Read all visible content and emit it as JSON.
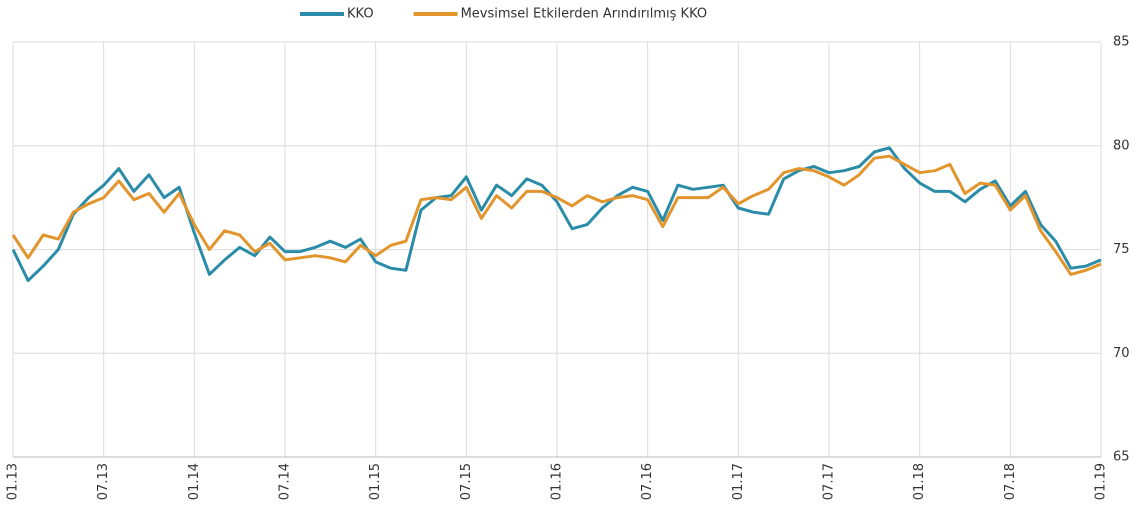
{
  "chart_data": {
    "type": "line",
    "categories": [
      "01.13",
      null,
      null,
      null,
      null,
      null,
      "07.13",
      null,
      null,
      null,
      null,
      null,
      "01.14",
      null,
      null,
      null,
      null,
      null,
      "07.14",
      null,
      null,
      null,
      null,
      null,
      "01.15",
      null,
      null,
      null,
      null,
      null,
      "07.15",
      null,
      null,
      null,
      null,
      null,
      "01.16",
      null,
      null,
      null,
      null,
      null,
      "07.16",
      null,
      null,
      null,
      null,
      null,
      "01.17",
      null,
      null,
      null,
      null,
      null,
      "07.17",
      null,
      null,
      null,
      null,
      null,
      "01.18",
      null,
      null,
      null,
      null,
      null,
      "07.18",
      null,
      null,
      null,
      null,
      null,
      "01.19"
    ],
    "series": [
      {
        "name": "KKO",
        "color": "#2a8ca8",
        "values": [
          75.0,
          73.5,
          74.2,
          75.0,
          76.7,
          77.5,
          78.1,
          78.9,
          77.8,
          78.6,
          77.5,
          78.0,
          75.8,
          73.8,
          74.5,
          75.1,
          74.7,
          75.6,
          74.9,
          74.9,
          75.1,
          75.4,
          75.1,
          75.5,
          74.4,
          74.1,
          74.0,
          76.9,
          77.5,
          77.6,
          78.5,
          76.9,
          78.1,
          77.6,
          78.4,
          78.1,
          77.3,
          76.0,
          76.2,
          77.0,
          77.6,
          78.0,
          77.8,
          76.4,
          78.1,
          77.9,
          78.0,
          78.1,
          77.0,
          76.8,
          76.7,
          78.4,
          78.8,
          79.0,
          78.7,
          78.8,
          79.0,
          79.7,
          79.9,
          78.9,
          78.2,
          77.8,
          77.8,
          77.3,
          77.9,
          78.3,
          77.1,
          77.8,
          76.2,
          75.4,
          74.1,
          74.2,
          74.5
        ]
      },
      {
        "name": "Mevsimsel Etkilerden Arındırılmış KKO",
        "color": "#e3952d",
        "values": [
          75.7,
          74.6,
          75.7,
          75.5,
          76.8,
          77.2,
          77.5,
          78.3,
          77.4,
          77.7,
          76.8,
          77.7,
          76.2,
          75.0,
          75.9,
          75.7,
          74.9,
          75.3,
          74.5,
          74.6,
          74.7,
          74.6,
          74.4,
          75.2,
          74.7,
          75.2,
          75.4,
          77.4,
          77.5,
          77.4,
          78.0,
          76.5,
          77.6,
          77.0,
          77.8,
          77.8,
          77.5,
          77.1,
          77.6,
          77.3,
          77.5,
          77.6,
          77.4,
          76.1,
          77.5,
          77.5,
          77.5,
          78.0,
          77.2,
          77.6,
          77.9,
          78.7,
          78.9,
          78.8,
          78.5,
          78.1,
          78.6,
          79.4,
          79.5,
          79.1,
          78.7,
          78.8,
          79.1,
          77.7,
          78.2,
          78.1,
          76.9,
          77.6,
          75.9,
          74.9,
          73.8,
          74.0,
          74.3
        ]
      }
    ],
    "ylim": [
      65,
      85
    ],
    "yticks": [
      65,
      70,
      75,
      80,
      85
    ],
    "grid": true
  }
}
